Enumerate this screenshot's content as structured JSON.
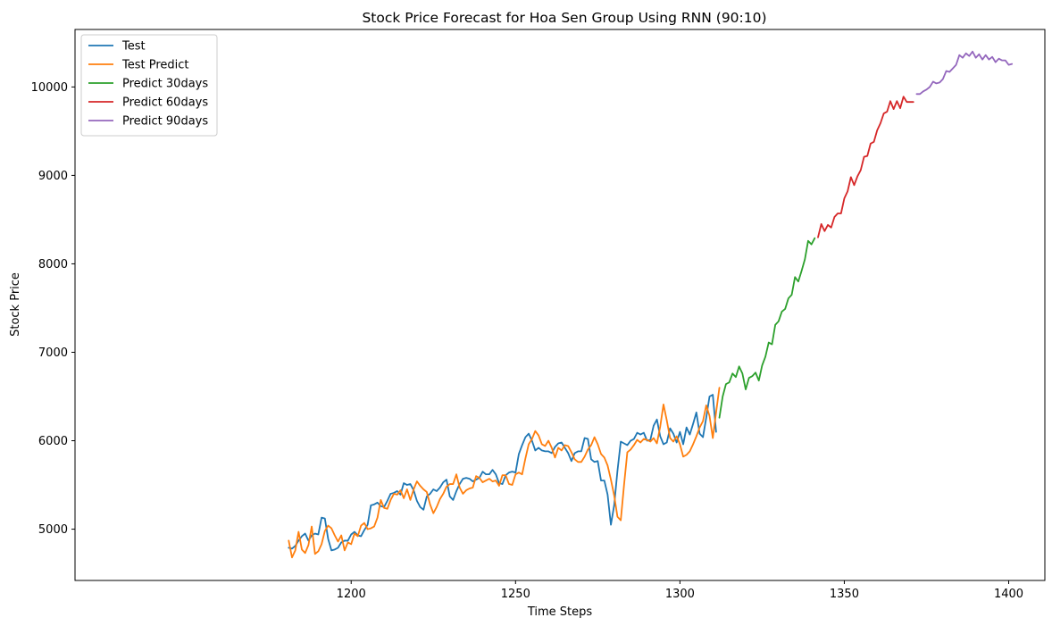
{
  "chart_data": {
    "type": "line",
    "title": "Stock Price Forecast for Hoa Sen Group Using RNN (90:10)",
    "xlabel": "Time Steps",
    "ylabel": "Stock Price",
    "xlim": [
      1116,
      1411
    ],
    "ylim": [
      4420,
      10650
    ],
    "xticks": [
      1200,
      1250,
      1300,
      1350,
      1400
    ],
    "yticks": [
      5000,
      6000,
      7000,
      8000,
      9000,
      10000
    ],
    "grid": false,
    "legend_position": "top-left",
    "series": [
      {
        "name": "Test",
        "color": "#1f77b4",
        "x_start": 1181,
        "values": [
          4790,
          4780,
          4810,
          4870,
          4920,
          4950,
          4870,
          4930,
          4950,
          4940,
          5130,
          5120,
          4890,
          4760,
          4770,
          4790,
          4850,
          4870,
          4870,
          4940,
          4970,
          4930,
          4920,
          4990,
          5050,
          5270,
          5280,
          5300,
          5260,
          5250,
          5320,
          5400,
          5410,
          5430,
          5390,
          5520,
          5500,
          5510,
          5440,
          5320,
          5250,
          5220,
          5370,
          5400,
          5450,
          5430,
          5470,
          5530,
          5560,
          5370,
          5330,
          5430,
          5510,
          5570,
          5580,
          5570,
          5540,
          5560,
          5580,
          5650,
          5620,
          5620,
          5670,
          5620,
          5520,
          5510,
          5610,
          5640,
          5650,
          5640,
          5850,
          5950,
          6040,
          6080,
          6000,
          5890,
          5920,
          5890,
          5880,
          5880,
          5860,
          5930,
          5970,
          5980,
          5920,
          5860,
          5770,
          5860,
          5880,
          5880,
          6030,
          6020,
          5790,
          5760,
          5770,
          5550,
          5550,
          5390,
          5050,
          5270,
          5660,
          5990,
          5970,
          5950,
          6000,
          6020,
          6090,
          6070,
          6090,
          6000,
          6010,
          6170,
          6240,
          6050,
          5960,
          5980,
          6140,
          6080,
          5980,
          6100,
          5960,
          6150,
          6070,
          6190,
          6320,
          6080,
          6040,
          6260,
          6500,
          6520,
          6100
        ]
      },
      {
        "name": "Test Predict",
        "color": "#ff7f0e",
        "x_start": 1181,
        "values": [
          4870,
          4680,
          4760,
          4970,
          4770,
          4730,
          4820,
          5030,
          4720,
          4750,
          4830,
          4980,
          5040,
          5010,
          4930,
          4860,
          4930,
          4760,
          4850,
          4830,
          4950,
          4920,
          5040,
          5070,
          5000,
          5010,
          5030,
          5130,
          5330,
          5240,
          5230,
          5330,
          5400,
          5390,
          5440,
          5350,
          5450,
          5330,
          5450,
          5540,
          5490,
          5450,
          5420,
          5280,
          5180,
          5250,
          5340,
          5400,
          5480,
          5510,
          5510,
          5620,
          5470,
          5400,
          5440,
          5460,
          5470,
          5600,
          5580,
          5530,
          5550,
          5570,
          5540,
          5550,
          5490,
          5610,
          5610,
          5510,
          5500,
          5620,
          5640,
          5620,
          5800,
          5960,
          6020,
          6110,
          6060,
          5960,
          5940,
          6000,
          5920,
          5810,
          5920,
          5890,
          5950,
          5940,
          5870,
          5790,
          5760,
          5760,
          5820,
          5900,
          5950,
          6040,
          5960,
          5850,
          5810,
          5720,
          5560,
          5380,
          5140,
          5100,
          5500,
          5870,
          5900,
          5950,
          6010,
          5980,
          6020,
          6010,
          5990,
          6030,
          5970,
          6160,
          6410,
          6230,
          6030,
          5990,
          6050,
          5960,
          5820,
          5840,
          5880,
          5960,
          6050,
          6150,
          6220,
          6400,
          6280,
          6030,
          6320,
          6600
        ]
      },
      {
        "name": "Predict 30days",
        "color": "#2ca02c",
        "x_start": 1312,
        "values": [
          6260,
          6500,
          6640,
          6660,
          6760,
          6720,
          6840,
          6760,
          6580,
          6710,
          6730,
          6770,
          6680,
          6850,
          6950,
          7110,
          7090,
          7310,
          7350,
          7460,
          7490,
          7610,
          7650,
          7850,
          7800,
          7920,
          8050,
          8260,
          8220,
          8290
        ]
      },
      {
        "name": "Predict 60days",
        "color": "#d62728",
        "x_start": 1342,
        "values": [
          8300,
          8450,
          8370,
          8440,
          8410,
          8530,
          8570,
          8570,
          8740,
          8820,
          8980,
          8890,
          8990,
          9060,
          9210,
          9220,
          9360,
          9380,
          9510,
          9590,
          9700,
          9720,
          9840,
          9750,
          9840,
          9760,
          9890,
          9830,
          9830,
          9830
        ]
      },
      {
        "name": "Predict 90days",
        "color": "#9467bd",
        "x_start": 1372,
        "values": [
          9920,
          9920,
          9950,
          9970,
          10000,
          10060,
          10040,
          10050,
          10090,
          10180,
          10170,
          10210,
          10250,
          10360,
          10330,
          10380,
          10350,
          10400,
          10330,
          10370,
          10310,
          10360,
          10310,
          10340,
          10280,
          10320,
          10300,
          10300,
          10250,
          10260
        ]
      }
    ]
  }
}
